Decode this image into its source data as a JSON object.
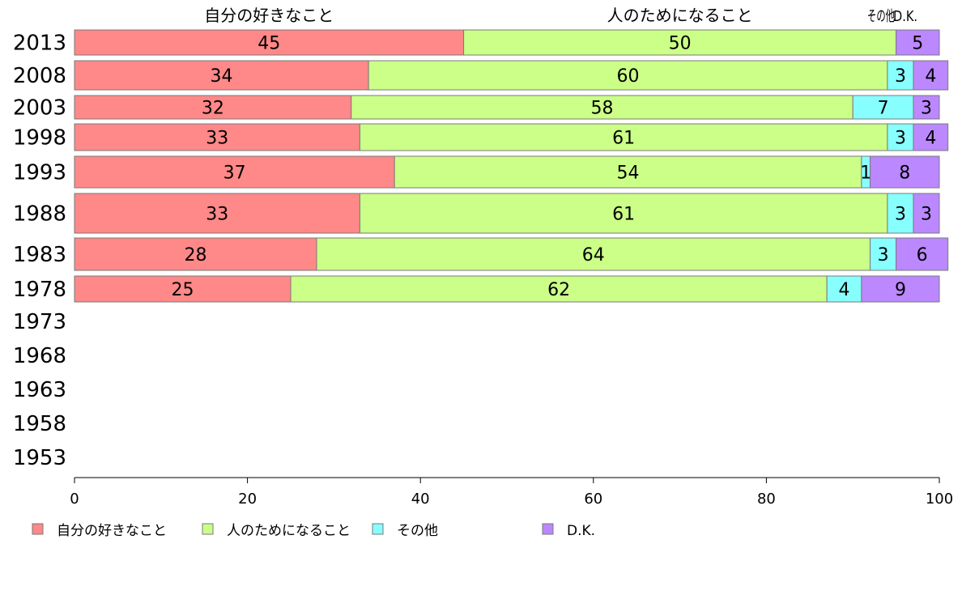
{
  "chart_data": {
    "type": "bar",
    "orientation": "horizontal-stacked-100",
    "categories": [
      "2013",
      "2008",
      "2003",
      "1998",
      "1993",
      "1988",
      "1983",
      "1978",
      "1973",
      "1968",
      "1963",
      "1958",
      "1953"
    ],
    "series": [
      {
        "name": "自分の好きなこと",
        "color": "#ff8888",
        "values": [
          45,
          34,
          32,
          33,
          37,
          33,
          28,
          25,
          null,
          null,
          null,
          null,
          null
        ]
      },
      {
        "name": "人のためになること",
        "color": "#ccff88",
        "values": [
          50,
          60,
          58,
          61,
          54,
          61,
          64,
          62,
          null,
          null,
          null,
          null,
          null
        ]
      },
      {
        "name": "その他",
        "color": "#88ffff",
        "values": [
          0,
          3,
          7,
          3,
          1,
          3,
          3,
          4,
          null,
          null,
          null,
          null,
          null
        ]
      },
      {
        "name": "D.K.",
        "color": "#bb88ff",
        "values": [
          5,
          4,
          3,
          4,
          8,
          3,
          6,
          9,
          null,
          null,
          null,
          null,
          null
        ]
      }
    ],
    "top_labels": [
      "自分の好きなこと",
      "人のためになること",
      "その他",
      "D.K."
    ],
    "xlim": [
      0,
      100
    ],
    "xticks": [
      "0",
      "20",
      "40",
      "60",
      "80",
      "100"
    ],
    "legend_position": "bottom",
    "grid": false
  }
}
